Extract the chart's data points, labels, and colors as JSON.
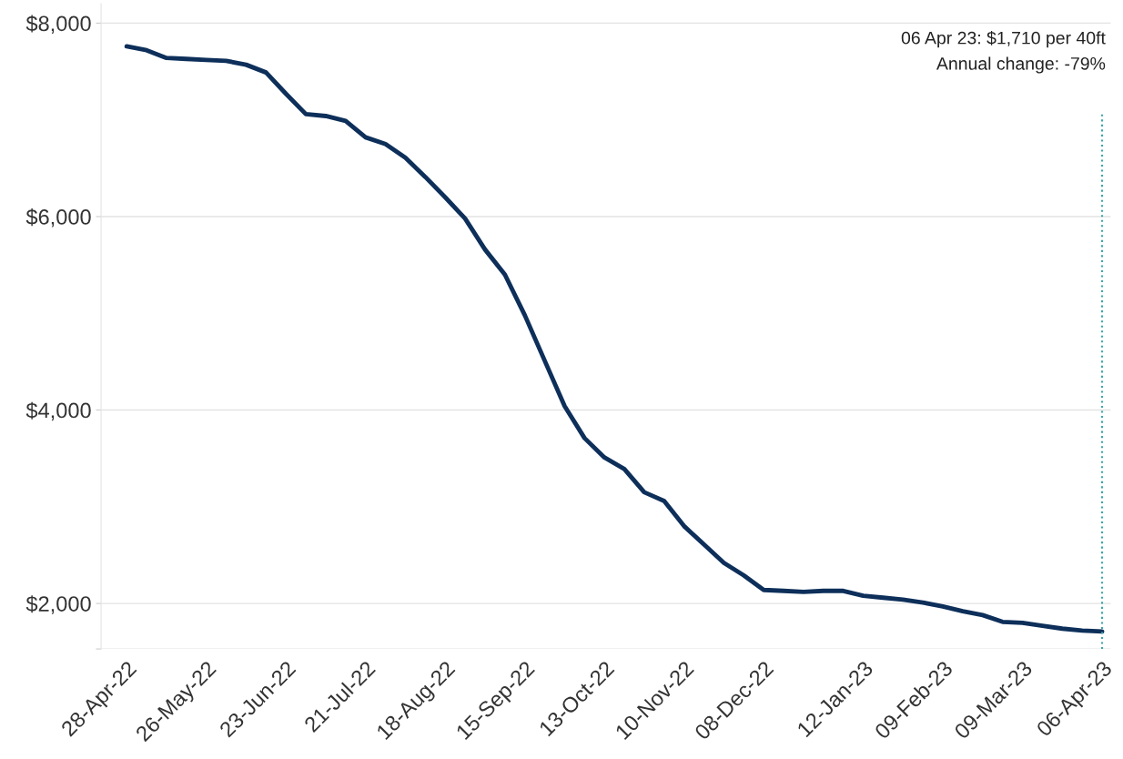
{
  "chart_data": {
    "type": "line",
    "x": [
      "2022-04-28",
      "2022-05-05",
      "2022-05-12",
      "2022-05-19",
      "2022-05-26",
      "2022-06-02",
      "2022-06-09",
      "2022-06-16",
      "2022-06-23",
      "2022-06-30",
      "2022-07-07",
      "2022-07-14",
      "2022-07-21",
      "2022-07-28",
      "2022-08-04",
      "2022-08-11",
      "2022-08-18",
      "2022-08-25",
      "2022-09-01",
      "2022-09-08",
      "2022-09-15",
      "2022-09-22",
      "2022-09-29",
      "2022-10-06",
      "2022-10-13",
      "2022-10-20",
      "2022-10-27",
      "2022-11-03",
      "2022-11-10",
      "2022-11-17",
      "2022-11-24",
      "2022-12-01",
      "2022-12-08",
      "2022-12-15",
      "2022-12-22",
      "2022-12-29",
      "2023-01-05",
      "2023-01-12",
      "2023-01-19",
      "2023-01-26",
      "2023-02-02",
      "2023-02-09",
      "2023-02-16",
      "2023-02-23",
      "2023-03-02",
      "2023-03-09",
      "2023-03-16",
      "2023-03-23",
      "2023-03-30",
      "2023-04-06"
    ],
    "series": [
      {
        "color": "#0d2f5a",
        "values": [
          7760,
          7720,
          7640,
          7630,
          7620,
          7610,
          7570,
          7490,
          7270,
          7060,
          7040,
          6990,
          6820,
          6750,
          6610,
          6410,
          6200,
          5980,
          5660,
          5400,
          4980,
          4510,
          4040,
          3710,
          3510,
          3390,
          3150,
          3060,
          2800,
          2610,
          2420,
          2290,
          2140,
          2130,
          2120,
          2130,
          2130,
          2080,
          2060,
          2040,
          2010,
          1970,
          1920,
          1880,
          1810,
          1800,
          1770,
          1740,
          1720,
          1710
        ]
      }
    ],
    "ylim": [
      1530,
      8200
    ],
    "yticks": [
      {
        "value": 1530,
        "label": null
      },
      {
        "value": 2000,
        "label": "$2,000"
      },
      {
        "value": 4000,
        "label": "$4,000"
      },
      {
        "value": 6000,
        "label": "$6,000"
      },
      {
        "value": 8000,
        "label": "$8,000"
      }
    ],
    "xlim": [
      "2022-04-19",
      "2023-04-09"
    ],
    "xticks": [
      {
        "value": "2022-04-28",
        "label": "28-Apr-22"
      },
      {
        "value": "2022-05-26",
        "label": "26-May-22"
      },
      {
        "value": "2022-06-23",
        "label": "23-Jun-22"
      },
      {
        "value": "2022-07-21",
        "label": "21-Jul-22"
      },
      {
        "value": "2022-08-18",
        "label": "18-Aug-22"
      },
      {
        "value": "2022-09-15",
        "label": "15-Sep-22"
      },
      {
        "value": "2022-10-13",
        "label": "13-Oct-22"
      },
      {
        "value": "2022-11-10",
        "label": "10-Nov-22"
      },
      {
        "value": "2022-12-08",
        "label": "08-Dec-22"
      },
      {
        "value": "2023-01-12",
        "label": "12-Jan-23"
      },
      {
        "value": "2023-02-09",
        "label": "09-Feb-23"
      },
      {
        "value": "2023-03-09",
        "label": "09-Mar-23"
      },
      {
        "value": "2023-04-06",
        "label": "06-Apr-23"
      }
    ],
    "grid": "y",
    "marker": "none",
    "line_style": "solid",
    "ref_lines": [
      {
        "axis": "x",
        "value": "2023-04-06",
        "color": "#3aa6a6",
        "line_style": "dotted"
      }
    ],
    "annotations": [
      "06 Apr 23: $1,710 per 40ft",
      "Annual change: -79%"
    ]
  }
}
